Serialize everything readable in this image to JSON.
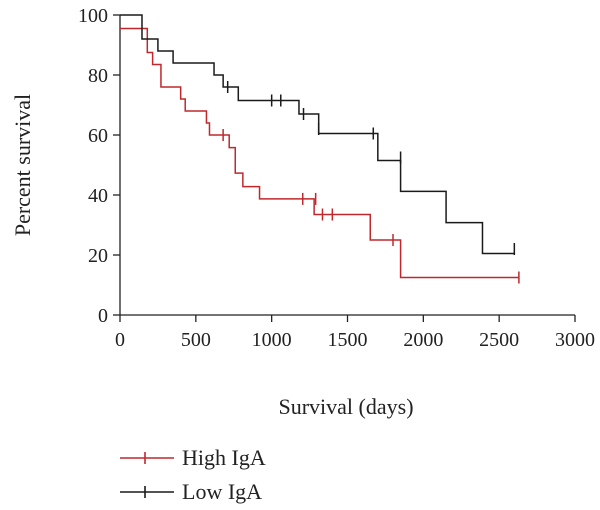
{
  "chart_data": {
    "type": "line",
    "subtype": "kaplan-meier-step",
    "title": "",
    "xlabel": "Survival (days)",
    "ylabel": "Percent survival",
    "xlim": [
      0,
      3000
    ],
    "ylim": [
      0,
      100
    ],
    "xticks": [
      0,
      500,
      1000,
      1500,
      2000,
      2500,
      3000
    ],
    "yticks": [
      0,
      20,
      40,
      60,
      80,
      100
    ],
    "grid": false,
    "legend_position": "bottom-left",
    "series": [
      {
        "name": "High IgA",
        "color": "#c0282d",
        "steps": [
          [
            0,
            95.5
          ],
          [
            180,
            87.5
          ],
          [
            215,
            83.5
          ],
          [
            270,
            76.0
          ],
          [
            400,
            72.0
          ],
          [
            430,
            68.0
          ],
          [
            570,
            64.0
          ],
          [
            590,
            60.0
          ],
          [
            720,
            55.8
          ],
          [
            760,
            47.3
          ],
          [
            810,
            42.8
          ],
          [
            920,
            38.7
          ],
          [
            1280,
            33.5
          ],
          [
            1650,
            25.0
          ],
          [
            1850,
            12.5
          ],
          [
            2630,
            12.5
          ]
        ],
        "censored": [
          [
            1205,
            38.7
          ],
          [
            1290,
            38.7
          ],
          [
            1335,
            33.5
          ],
          [
            1400,
            33.5
          ],
          [
            1800,
            25.0
          ],
          [
            2630,
            12.5
          ],
          [
            680,
            60.0
          ]
        ]
      },
      {
        "name": "Low IgA",
        "color": "#1a1a1a",
        "steps": [
          [
            0,
            100.0
          ],
          [
            145,
            92.0
          ],
          [
            250,
            88.0
          ],
          [
            350,
            84.0
          ],
          [
            620,
            80.0
          ],
          [
            680,
            76.0
          ],
          [
            780,
            71.5
          ],
          [
            1180,
            67.0
          ],
          [
            1310,
            60.5
          ],
          [
            1700,
            51.5
          ],
          [
            1850,
            41.2
          ],
          [
            2150,
            30.8
          ],
          [
            2390,
            20.5
          ],
          [
            2600,
            20.5
          ]
        ],
        "censored": [
          [
            710,
            76.0
          ],
          [
            1000,
            71.5
          ],
          [
            1060,
            71.5
          ],
          [
            1210,
            67.0
          ],
          [
            1310,
            62.0
          ],
          [
            1670,
            60.5
          ],
          [
            1850,
            52.5
          ],
          [
            2600,
            22.0
          ]
        ]
      }
    ]
  }
}
